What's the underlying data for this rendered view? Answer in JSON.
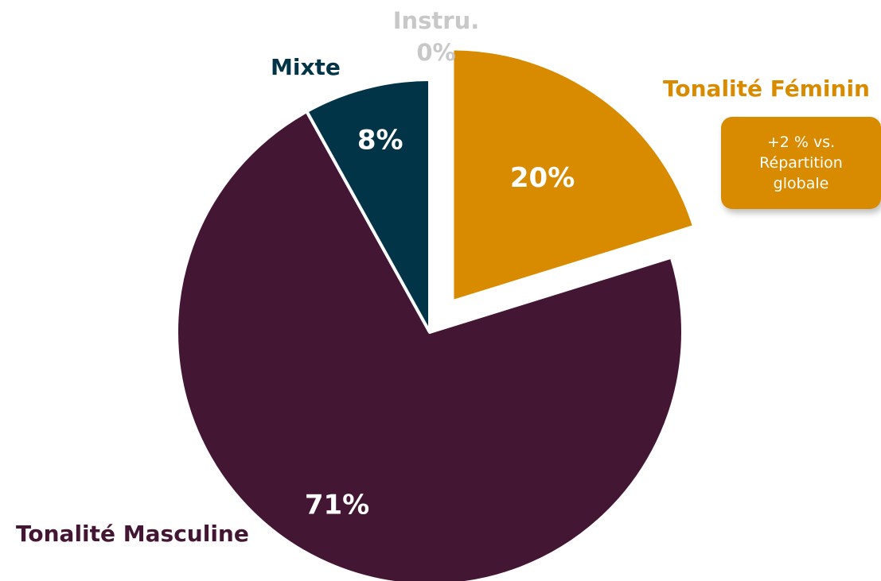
{
  "chart_data": {
    "type": "pie",
    "slices": [
      {
        "name": "Tonalité Féminin",
        "value": 20,
        "label": "20%",
        "color": "#D98B00",
        "exploded": true
      },
      {
        "name": "Tonalité Masculine",
        "value": 71,
        "label": "71%",
        "color": "#431634",
        "exploded": false
      },
      {
        "name": "Mixte",
        "value": 8,
        "label": "8%",
        "color": "#003446",
        "exploded": false
      },
      {
        "name": "Instru.",
        "value": 0,
        "label": "0%",
        "color": "#C8C8C8",
        "exploded": false
      }
    ],
    "annotation": {
      "lines": [
        "+2 % vs.",
        "Répartition",
        "globale"
      ],
      "color": "#D98B00"
    }
  }
}
